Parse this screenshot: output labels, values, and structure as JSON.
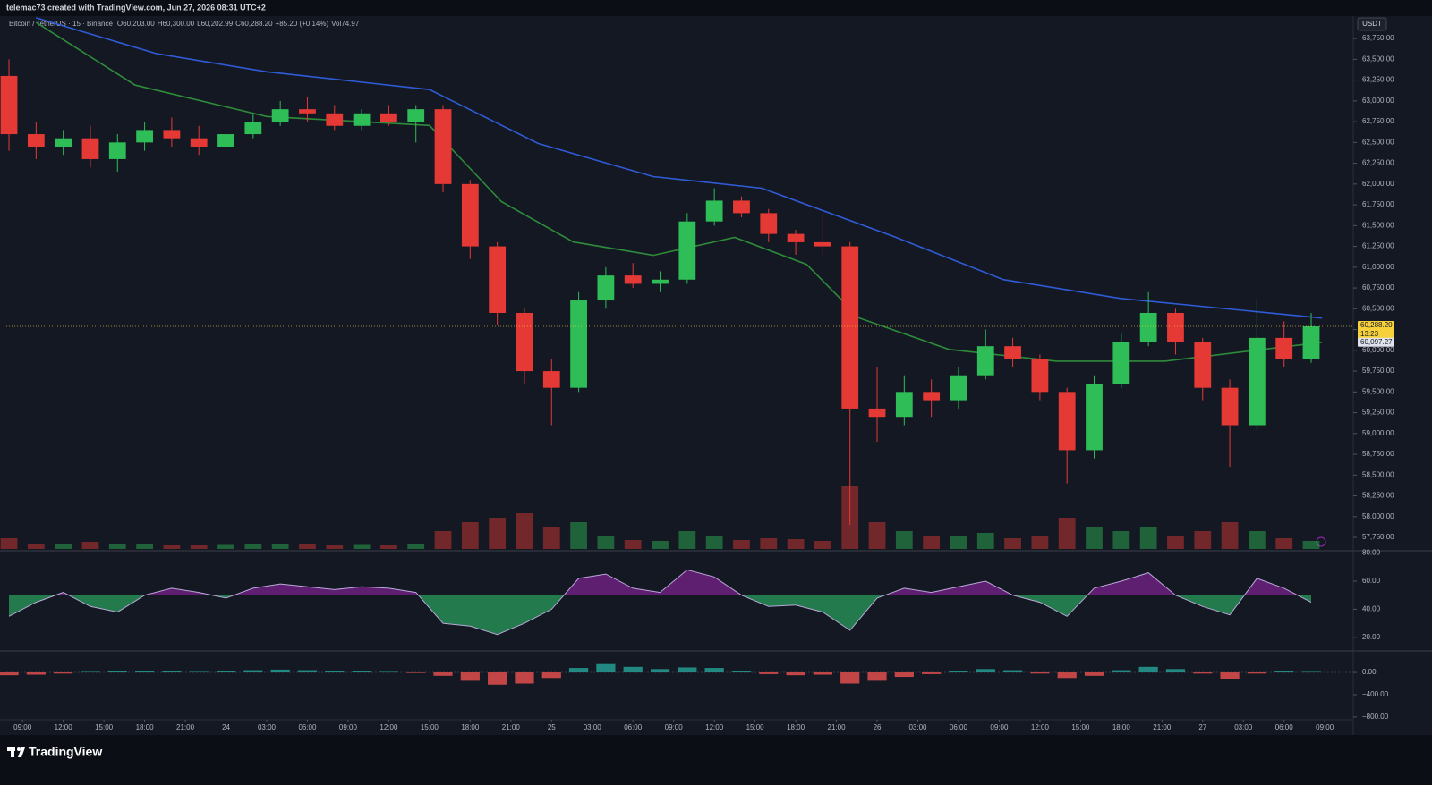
{
  "header": {
    "credit": "telemac73 created with TradingView.com, Jun 27, 2026 08:31 UTC+2",
    "symbol": "Bitcoin / TetherUS · 15 · Binance",
    "ohlc": [
      {
        "key": "O",
        "value": "60,203.00"
      },
      {
        "key": "H",
        "value": "60,300.00"
      },
      {
        "key": "L",
        "value": "60,202.99"
      },
      {
        "key": "C",
        "value": "60,288.20"
      }
    ],
    "change": "+85.20 (+0.14%)",
    "volume": {
      "key": "Vol",
      "value": "74.97"
    },
    "currency": "USDT"
  },
  "chart_data": [
    {
      "type": "candlestick",
      "up_color": "#2ebd56",
      "down_color": "#e53935",
      "grid": false,
      "x": [
        -1,
        1,
        3,
        5,
        7,
        9,
        11,
        13,
        15,
        17,
        19,
        21,
        23,
        25,
        27,
        29,
        31,
        33,
        35,
        37,
        39,
        41,
        43,
        45,
        47,
        49,
        51,
        53,
        55,
        57,
        59,
        61,
        63,
        65,
        67,
        69,
        71,
        73,
        75,
        77,
        79,
        81,
        83,
        85,
        87,
        89,
        91,
        93,
        95
      ],
      "open": [
        63300,
        62600,
        62450,
        62550,
        62300,
        62500,
        62650,
        62550,
        62450,
        62600,
        62750,
        62900,
        62850,
        62700,
        62850,
        62750,
        62900,
        62000,
        61250,
        60450,
        59750,
        59550,
        60600,
        60900,
        60800,
        60850,
        61550,
        61800,
        61650,
        61400,
        61300,
        61250,
        59300,
        59200,
        59500,
        59400,
        59700,
        60050,
        59900,
        59500,
        58800,
        59600,
        60100,
        60450,
        60100,
        59550,
        59100,
        60150,
        59900
      ],
      "high": [
        63500,
        62750,
        62650,
        62700,
        62600,
        62750,
        62800,
        62700,
        62650,
        62850,
        63000,
        63050,
        62950,
        62900,
        62950,
        62950,
        62950,
        62050,
        61300,
        60500,
        59900,
        60700,
        61000,
        61050,
        60950,
        61650,
        61950,
        61850,
        61700,
        61450,
        61650,
        61300,
        59800,
        59700,
        59650,
        59800,
        60250,
        60150,
        59950,
        59550,
        59700,
        60200,
        60700,
        60500,
        60150,
        59650,
        60600,
        60350,
        60450
      ],
      "low": [
        62400,
        62300,
        62350,
        62200,
        62150,
        62400,
        62450,
        62350,
        62350,
        62550,
        62700,
        62750,
        62650,
        62650,
        62700,
        62500,
        61900,
        61100,
        60300,
        59600,
        59100,
        59500,
        60500,
        60750,
        60700,
        60800,
        61500,
        61600,
        61300,
        61150,
        61150,
        57900,
        58900,
        59100,
        59200,
        59300,
        59650,
        59800,
        59400,
        58400,
        58700,
        59550,
        60050,
        59950,
        59400,
        58600,
        59050,
        59800,
        59850
      ],
      "close": [
        62600,
        62450,
        62550,
        62300,
        62500,
        62650,
        62550,
        62450,
        62600,
        62750,
        62900,
        62850,
        62700,
        62850,
        62750,
        62900,
        62000,
        61250,
        60450,
        59750,
        59550,
        60600,
        60900,
        60800,
        60850,
        61550,
        61800,
        61650,
        61400,
        61300,
        61250,
        59300,
        59200,
        59500,
        59400,
        59700,
        60050,
        59900,
        59500,
        58800,
        59600,
        60100,
        60450,
        60100,
        59550,
        59100,
        60150,
        59900,
        60288.2
      ],
      "volume": [
        120,
        60,
        50,
        80,
        60,
        50,
        40,
        40,
        45,
        50,
        60,
        50,
        40,
        45,
        40,
        60,
        200,
        300,
        350,
        400,
        250,
        300,
        150,
        100,
        90,
        200,
        150,
        100,
        120,
        110,
        90,
        700,
        300,
        200,
        150,
        150,
        180,
        120,
        150,
        350,
        250,
        200,
        250,
        150,
        200,
        300,
        200,
        120,
        90
      ],
      "lines": [
        {
          "color": "#2f5bd6",
          "x": [
            1,
            9.9,
            18,
            30,
            38,
            46.5,
            54.5,
            64.4,
            72.3,
            80.9,
            95.8
          ],
          "values": [
            64000,
            63567,
            63350,
            63136,
            62489,
            62090,
            61950,
            61358,
            60851,
            60625,
            60388
          ]
        },
        {
          "color": "#2e8b3a",
          "x": [
            1,
            8.3,
            18,
            30,
            35.3,
            40.6,
            46.5,
            52.5,
            57.8,
            61.7,
            68.3,
            76.2,
            84.2,
            95.8
          ],
          "values": [
            63944,
            63190,
            62812,
            62705,
            61789,
            61304,
            61142,
            61358,
            61034,
            60388,
            60011,
            59870,
            59870,
            60097.27
          ]
        }
      ],
      "price_tags": [
        {
          "value": 60288.2,
          "label": "60,288.20",
          "countdown": "13:23",
          "color": "#f7d13b"
        },
        {
          "value": 60097.27,
          "label": "60,097.27",
          "color": "#e0e3eb"
        }
      ],
      "xlim": [
        -1.2,
        98.1
      ],
      "xticks": [
        {
          "value": 0,
          "label": "09:00"
        },
        {
          "value": 3,
          "label": "12:00"
        },
        {
          "value": 6,
          "label": "15:00"
        },
        {
          "value": 9,
          "label": "18:00"
        },
        {
          "value": 12,
          "label": "21:00"
        },
        {
          "value": 15,
          "label": "24"
        },
        {
          "value": 18,
          "label": "03:00"
        },
        {
          "value": 21,
          "label": "06:00"
        },
        {
          "value": 24,
          "label": "09:00"
        },
        {
          "value": 27,
          "label": "12:00"
        },
        {
          "value": 30,
          "label": "15:00"
        },
        {
          "value": 33,
          "label": "18:00"
        },
        {
          "value": 36,
          "label": "21:00"
        },
        {
          "value": 39,
          "label": "25"
        },
        {
          "value": 42,
          "label": "03:00"
        },
        {
          "value": 45,
          "label": "06:00"
        },
        {
          "value": 48,
          "label": "09:00"
        },
        {
          "value": 51,
          "label": "12:00"
        },
        {
          "value": 54,
          "label": "15:00"
        },
        {
          "value": 57,
          "label": "18:00"
        },
        {
          "value": 60,
          "label": "21:00"
        },
        {
          "value": 63,
          "label": "26"
        },
        {
          "value": 66,
          "label": "03:00"
        },
        {
          "value": 69,
          "label": "06:00"
        },
        {
          "value": 72,
          "label": "09:00"
        },
        {
          "value": 75,
          "label": "12:00"
        },
        {
          "value": 78,
          "label": "15:00"
        },
        {
          "value": 81,
          "label": "18:00"
        },
        {
          "value": 84,
          "label": "21:00"
        },
        {
          "value": 87,
          "label": "27"
        },
        {
          "value": 90,
          "label": "03:00"
        },
        {
          "value": 93,
          "label": "06:00"
        },
        {
          "value": 96,
          "label": "09:00"
        }
      ],
      "ylim": [
        57600,
        64020
      ],
      "yticks": [
        {
          "value": 57750,
          "label": "57,750.00"
        },
        {
          "value": 58000,
          "label": "58,000.00"
        },
        {
          "value": 58250,
          "label": "58,250.00"
        },
        {
          "value": 58500,
          "label": "58,500.00"
        },
        {
          "value": 58750,
          "label": "58,750.00"
        },
        {
          "value": 59000,
          "label": "59,000.00"
        },
        {
          "value": 59250,
          "label": "59,250.00"
        },
        {
          "value": 59500,
          "label": "59,500.00"
        },
        {
          "value": 59750,
          "label": "59,750.00"
        },
        {
          "value": 60000,
          "label": "60,000.00"
        },
        {
          "value": 60250,
          "label": "60,250.00"
        },
        {
          "value": 60500,
          "label": "60,500.00"
        },
        {
          "value": 60750,
          "label": "60,750.00"
        },
        {
          "value": 61000,
          "label": "61,000.00"
        },
        {
          "value": 61250,
          "label": "61,250.00"
        },
        {
          "value": 61500,
          "label": "61,500.00"
        },
        {
          "value": 61750,
          "label": "61,750.00"
        },
        {
          "value": 62000,
          "label": "62,000.00"
        },
        {
          "value": 62250,
          "label": "62,250.00"
        },
        {
          "value": 62500,
          "label": "62,500.00"
        },
        {
          "value": 62750,
          "label": "62,750.00"
        },
        {
          "value": 63000,
          "label": "63,000.00"
        },
        {
          "value": 63250,
          "label": "63,250.00"
        },
        {
          "value": 63500,
          "label": "63,500.00"
        },
        {
          "value": 63750,
          "label": "63,750.00"
        }
      ]
    },
    {
      "type": "line",
      "color": "#b9a8d8",
      "above_color": "#9c27b0",
      "below_color": "#2ecc71",
      "midline": 50,
      "values": [
        35,
        45,
        52,
        42,
        38,
        50,
        55,
        52,
        48,
        55,
        58,
        56,
        54,
        56,
        55,
        52,
        30,
        28,
        22,
        30,
        40,
        62,
        65,
        55,
        52,
        68,
        63,
        50,
        42,
        43,
        38,
        25,
        48,
        55,
        52,
        56,
        60,
        50,
        45,
        35,
        55,
        60,
        66,
        50,
        42,
        36,
        62,
        55,
        45
      ],
      "ylim": [
        11,
        81
      ],
      "yticks": [
        {
          "value": 80,
          "label": "80.00"
        },
        {
          "value": 60,
          "label": "60.00"
        },
        {
          "value": 40,
          "label": "40.00"
        },
        {
          "value": 20,
          "label": "20.00"
        }
      ]
    },
    {
      "type": "bar",
      "pos_color": "#26a69a",
      "neg_color": "#ef5350",
      "values": [
        -50,
        -40,
        -20,
        10,
        20,
        30,
        20,
        10,
        20,
        40,
        50,
        40,
        20,
        20,
        10,
        -10,
        -60,
        -150,
        -220,
        -200,
        -100,
        80,
        150,
        100,
        60,
        90,
        80,
        20,
        -30,
        -50,
        -40,
        -200,
        -150,
        -80,
        -30,
        20,
        60,
        40,
        -20,
        -100,
        -60,
        40,
        100,
        60,
        -20,
        -120,
        -20,
        20,
        10
      ],
      "ylim": [
        -850,
        370
      ],
      "yticks": [
        {
          "value": 0,
          "label": "0.00"
        },
        {
          "value": -400,
          "label": "−400.00"
        },
        {
          "value": -800,
          "label": "−800.00"
        }
      ]
    }
  ],
  "footer": {
    "brand": "TradingView"
  }
}
